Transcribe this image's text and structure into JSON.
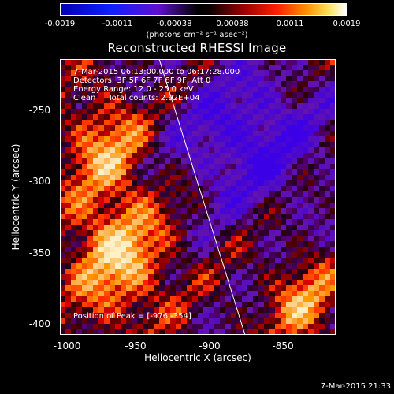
{
  "colorbar": {
    "ticks": [
      "-0.0019",
      "-0.0011",
      "-0.00038",
      "0.00038",
      "0.0011",
      "0.0019"
    ],
    "units": "(photons cm⁻² s⁻¹ asec⁻²)"
  },
  "title": "Reconstructed RHESSI Image",
  "info_lines": [
    "7-Mar-2015 06:13:00.000 to 06:17:28.000",
    "Detectors: 3F 5F 6F 7F 8F 9F, Att 0",
    "Energy Range: 12.0 - 25.0 keV",
    "Clean     Total counts: 2.92E+04"
  ],
  "peak_text": "Position of Peak = [-976,-354]",
  "axes": {
    "xlabel": "Heliocentric X (arcsec)",
    "ylabel": "Heliocentric Y (arcsec)",
    "xticks": [
      "-1000",
      "-950",
      "-900",
      "-850"
    ],
    "yticks": [
      "-250",
      "-300",
      "-350",
      "-400"
    ],
    "xlim": [
      -1000,
      -815
    ],
    "ylim": [
      -405,
      -220
    ]
  },
  "timestamp": "7-Mar-2015 21:33"
}
